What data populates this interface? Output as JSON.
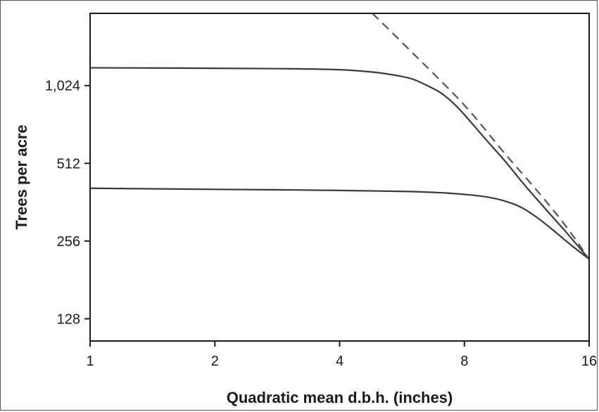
{
  "chart_data": {
    "type": "line",
    "xscale": "log2",
    "yscale": "log2",
    "xlabel": "Quadratic mean d.b.h. (inches)",
    "ylabel": "Trees per acre",
    "xlim": [
      1,
      16
    ],
    "ylim": [
      105,
      1950
    ],
    "xticks": [
      1,
      2,
      4,
      8,
      16
    ],
    "xtick_labels": [
      "1",
      "2",
      "4",
      "8",
      "16"
    ],
    "yticks": [
      128,
      256,
      512,
      1024
    ],
    "ytick_labels": [
      "128",
      "256",
      "512",
      "1,024"
    ],
    "grid": false,
    "legend": "none",
    "series": [
      {
        "style": "solid",
        "color": "#3a3a3a",
        "x": [
          1,
          2,
          3,
          4,
          4.8,
          5.5,
          6,
          6.5,
          7,
          7.5,
          8,
          9,
          10,
          11,
          12,
          13,
          14,
          15,
          16
        ],
        "y": [
          1200,
          1195,
          1190,
          1180,
          1155,
          1120,
          1085,
          1025,
          962,
          880,
          790,
          635,
          525,
          435,
          370,
          320,
          280,
          246,
          218
        ]
      },
      {
        "style": "solid",
        "color": "#3a3a3a",
        "x": [
          1,
          2,
          3,
          4,
          5,
          6,
          7,
          8,
          9,
          10,
          11,
          12,
          13,
          14,
          15,
          16
        ],
        "y": [
          410,
          406,
          404,
          402,
          400,
          398,
          394,
          388,
          380,
          366,
          345,
          315,
          285,
          258,
          236,
          218
        ]
      },
      {
        "style": "dashed",
        "color": "#555555",
        "x": [
          4.8,
          6,
          8,
          10,
          12,
          14,
          16
        ],
        "y": [
          1950,
          1370,
          860,
          560,
          400,
          295,
          218
        ]
      }
    ]
  }
}
